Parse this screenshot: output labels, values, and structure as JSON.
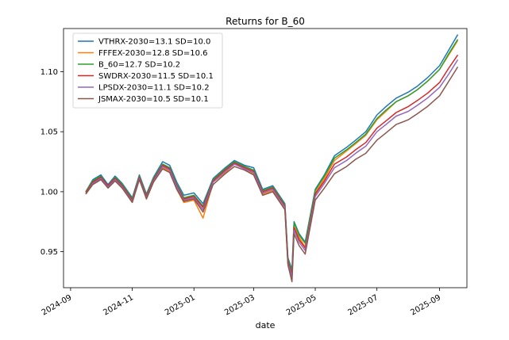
{
  "chart_data": {
    "type": "line",
    "title": "Returns for B_60",
    "xlabel": "date",
    "ylabel": "",
    "ylim": [
      0.92,
      1.136
    ],
    "xlim": [
      "2024-08-25",
      "2025-09-28"
    ],
    "grid": false,
    "legend_position": "top-left",
    "x_ticks": [
      "2024-09",
      "2024-11",
      "2025-01",
      "2025-03",
      "2025-05",
      "2025-07",
      "2025-09"
    ],
    "y_ticks": [
      0.95,
      1.0,
      1.05,
      1.1
    ],
    "y_tick_labels": [
      "0.95",
      "1.00",
      "1.05",
      "1.10"
    ],
    "x": [
      "2024-09-16",
      "2024-09-23",
      "2024-10-01",
      "2024-10-08",
      "2024-10-15",
      "2024-10-22",
      "2024-11-01",
      "2024-11-08",
      "2024-11-15",
      "2024-11-22",
      "2024-12-01",
      "2024-12-08",
      "2024-12-15",
      "2024-12-22",
      "2025-01-01",
      "2025-01-10",
      "2025-01-20",
      "2025-02-01",
      "2025-02-10",
      "2025-02-20",
      "2025-03-01",
      "2025-03-10",
      "2025-03-20",
      "2025-04-01",
      "2025-04-04",
      "2025-04-08",
      "2025-04-10",
      "2025-04-15",
      "2025-04-21",
      "2025-05-01",
      "2025-05-10",
      "2025-05-20",
      "2025-06-01",
      "2025-06-10",
      "2025-06-20",
      "2025-07-01",
      "2025-07-10",
      "2025-07-20",
      "2025-08-01",
      "2025-08-10",
      "2025-08-20",
      "2025-09-01",
      "2025-09-10",
      "2025-09-19"
    ],
    "series": [
      {
        "name": "VTHRX-2030=13.1 SD=10.0",
        "color": "#1f77b4",
        "values": [
          1.0,
          1.01,
          1.014,
          1.006,
          1.013,
          1.007,
          0.995,
          1.014,
          0.998,
          1.012,
          1.025,
          1.022,
          1.008,
          0.997,
          0.999,
          0.99,
          1.011,
          1.02,
          1.026,
          1.022,
          1.02,
          1.002,
          1.005,
          0.99,
          0.945,
          0.935,
          0.975,
          0.965,
          0.958,
          1.002,
          1.014,
          1.03,
          1.037,
          1.043,
          1.05,
          1.064,
          1.071,
          1.078,
          1.083,
          1.088,
          1.095,
          1.105,
          1.118,
          1.131
        ]
      },
      {
        "name": "FFFEX-2030=12.8 SD=10.6",
        "color": "#ff7f0e",
        "values": [
          0.999,
          1.007,
          1.011,
          1.004,
          1.01,
          1.003,
          0.992,
          1.012,
          0.994,
          1.008,
          1.02,
          1.017,
          1.002,
          0.991,
          0.993,
          0.978,
          1.008,
          1.016,
          1.023,
          1.019,
          1.015,
          0.998,
          1.001,
          0.985,
          0.94,
          0.93,
          0.971,
          0.962,
          0.954,
          0.999,
          1.011,
          1.026,
          1.034,
          1.04,
          1.047,
          1.06,
          1.067,
          1.075,
          1.08,
          1.085,
          1.092,
          1.102,
          1.114,
          1.126
        ]
      },
      {
        "name": "B_60=12.7 SD=10.2",
        "color": "#2ca02c",
        "values": [
          1.0,
          1.009,
          1.013,
          1.005,
          1.012,
          1.006,
          0.994,
          1.013,
          0.997,
          1.011,
          1.023,
          1.02,
          1.006,
          0.995,
          0.997,
          0.988,
          1.01,
          1.019,
          1.025,
          1.021,
          1.018,
          1.001,
          1.004,
          0.989,
          0.944,
          0.933,
          0.974,
          0.964,
          0.957,
          1.001,
          1.013,
          1.028,
          1.035,
          1.041,
          1.048,
          1.061,
          1.068,
          1.075,
          1.08,
          1.085,
          1.092,
          1.102,
          1.115,
          1.127
        ]
      },
      {
        "name": "SWDRX-2030=11.5 SD=10.1",
        "color": "#d62728",
        "values": [
          0.999,
          1.008,
          1.012,
          1.005,
          1.011,
          1.005,
          0.993,
          1.012,
          0.996,
          1.01,
          1.022,
          1.019,
          1.005,
          0.994,
          0.996,
          0.987,
          1.009,
          1.018,
          1.024,
          1.02,
          1.017,
          1.0,
          1.003,
          0.988,
          0.942,
          0.931,
          0.97,
          0.96,
          0.953,
          0.998,
          1.009,
          1.023,
          1.029,
          1.035,
          1.041,
          1.053,
          1.059,
          1.066,
          1.071,
          1.076,
          1.082,
          1.091,
          1.103,
          1.114
        ]
      },
      {
        "name": "LPSDX-2030=11.1 SD=10.2",
        "color": "#9467bd",
        "values": [
          0.998,
          1.007,
          1.011,
          1.004,
          1.01,
          1.004,
          0.992,
          1.011,
          0.995,
          1.009,
          1.021,
          1.018,
          1.004,
          0.993,
          0.995,
          0.985,
          1.008,
          1.017,
          1.023,
          1.019,
          1.016,
          0.999,
          1.002,
          0.987,
          0.941,
          0.929,
          0.968,
          0.958,
          0.951,
          0.996,
          1.007,
          1.02,
          1.026,
          1.032,
          1.038,
          1.05,
          1.056,
          1.063,
          1.067,
          1.072,
          1.078,
          1.087,
          1.098,
          1.11
        ]
      },
      {
        "name": "JSMAX-2030=10.5 SD=10.1",
        "color": "#8c564b",
        "values": [
          0.998,
          1.006,
          1.01,
          1.003,
          1.009,
          1.003,
          0.991,
          1.01,
          0.994,
          1.008,
          1.019,
          1.016,
          1.002,
          0.992,
          0.994,
          0.983,
          1.006,
          1.015,
          1.021,
          1.018,
          1.014,
          0.997,
          1.0,
          0.985,
          0.939,
          0.925,
          0.965,
          0.955,
          0.948,
          0.993,
          1.003,
          1.015,
          1.021,
          1.027,
          1.032,
          1.043,
          1.049,
          1.056,
          1.06,
          1.065,
          1.071,
          1.08,
          1.092,
          1.104
        ]
      }
    ]
  }
}
